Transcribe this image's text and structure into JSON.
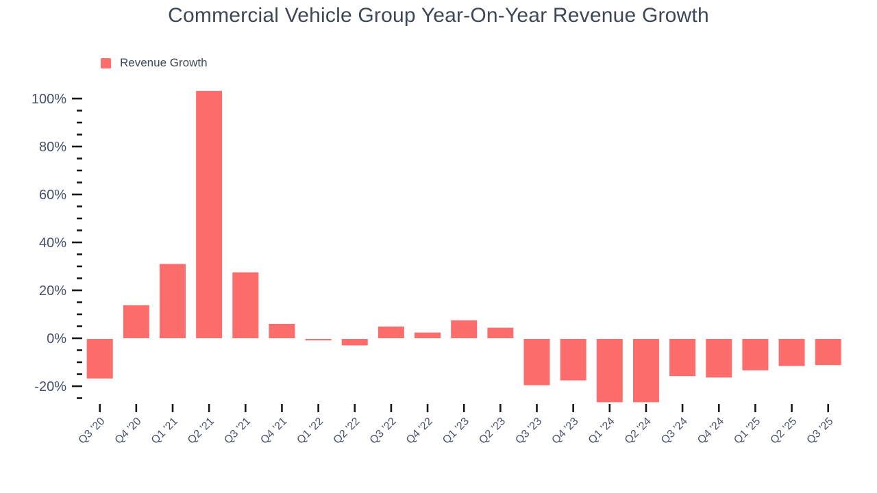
{
  "page": {
    "background": "#ffffff"
  },
  "chart": {
    "title": "Commercial Vehicle Group Year-On-Year Revenue Growth",
    "legend": {
      "label": "Revenue Growth"
    },
    "colors": {
      "bar": "#fc6d6b",
      "title_text": "#3d4757",
      "axis_text": "#46506b",
      "tick": "#14171c"
    }
  },
  "chart_data": {
    "type": "bar",
    "title": "Commercial Vehicle Group Year-On-Year Revenue Growth",
    "legend_entries": [
      "Revenue Growth"
    ],
    "legend_position": "top-left",
    "xlabel": "",
    "ylabel": "",
    "grid": false,
    "categories": [
      "Q3 '20",
      "Q4 '20",
      "Q1 '21",
      "Q2 '21",
      "Q3 '21",
      "Q4 '21",
      "Q1 '22",
      "Q2 '22",
      "Q3 '22",
      "Q4 '22",
      "Q1 '23",
      "Q2 '23",
      "Q3 '23",
      "Q4 '23",
      "Q1 '24",
      "Q2 '24",
      "Q3 '24",
      "Q4 '24",
      "Q1 '25",
      "Q2 '25",
      "Q3 '25"
    ],
    "values": [
      -16.5,
      13.8,
      31.0,
      103.2,
      27.5,
      6.0,
      -0.6,
      -2.7,
      4.9,
      2.4,
      7.5,
      4.4,
      -19.3,
      -17.3,
      -26.4,
      -26.4,
      -15.5,
      -16.1,
      -13.1,
      -11.3,
      -10.9
    ],
    "value_unit": "%",
    "y_axis": {
      "min": -26.5,
      "max": 103.5,
      "major_tick_step": 20,
      "minor_tick_step": 5,
      "major_tick_labels": [
        "100%",
        "80%",
        "60%",
        "40%",
        "20%",
        "0%",
        "-20%"
      ],
      "tick_range_top": 100,
      "tick_range_bottom": -25
    }
  }
}
